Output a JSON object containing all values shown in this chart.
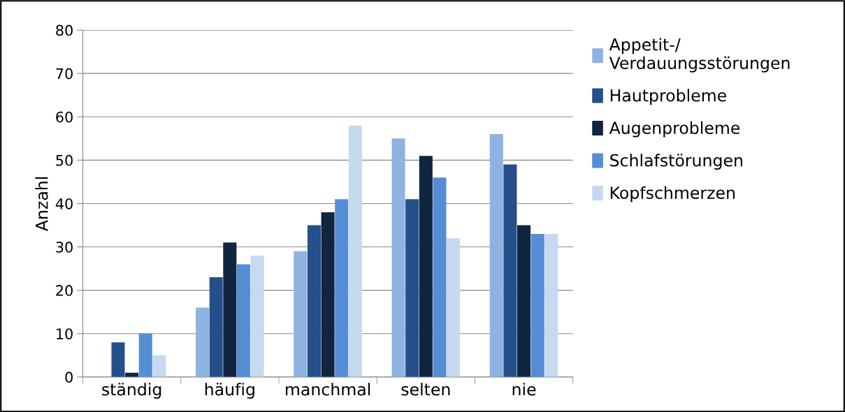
{
  "chart_data": {
    "type": "bar",
    "ylabel": "Anzahl",
    "categories": [
      "ständig",
      "häufig",
      "manchmal",
      "selten",
      "nie"
    ],
    "series": [
      {
        "name": "Appetit-/\nVerdauungsstörungen",
        "color": "#8db3e2",
        "values": [
          0,
          16,
          29,
          55,
          56
        ]
      },
      {
        "name": "Hautprobleme",
        "color": "#254f8a",
        "values": [
          8,
          23,
          35,
          41,
          49
        ]
      },
      {
        "name": "Augenprobleme",
        "color": "#10253f",
        "values": [
          1,
          31,
          38,
          51,
          35
        ]
      },
      {
        "name": "Schlafstörungen",
        "color": "#558ed5",
        "values": [
          10,
          26,
          41,
          46,
          33
        ]
      },
      {
        "name": "Kopfschmerzen",
        "color": "#c6d9f1",
        "values": [
          5,
          28,
          58,
          32,
          33
        ]
      }
    ],
    "ylim": [
      0,
      80
    ],
    "yticks": [
      0,
      10,
      20,
      30,
      40,
      50,
      60,
      70,
      80
    ],
    "grid": "y",
    "legend": "right"
  }
}
